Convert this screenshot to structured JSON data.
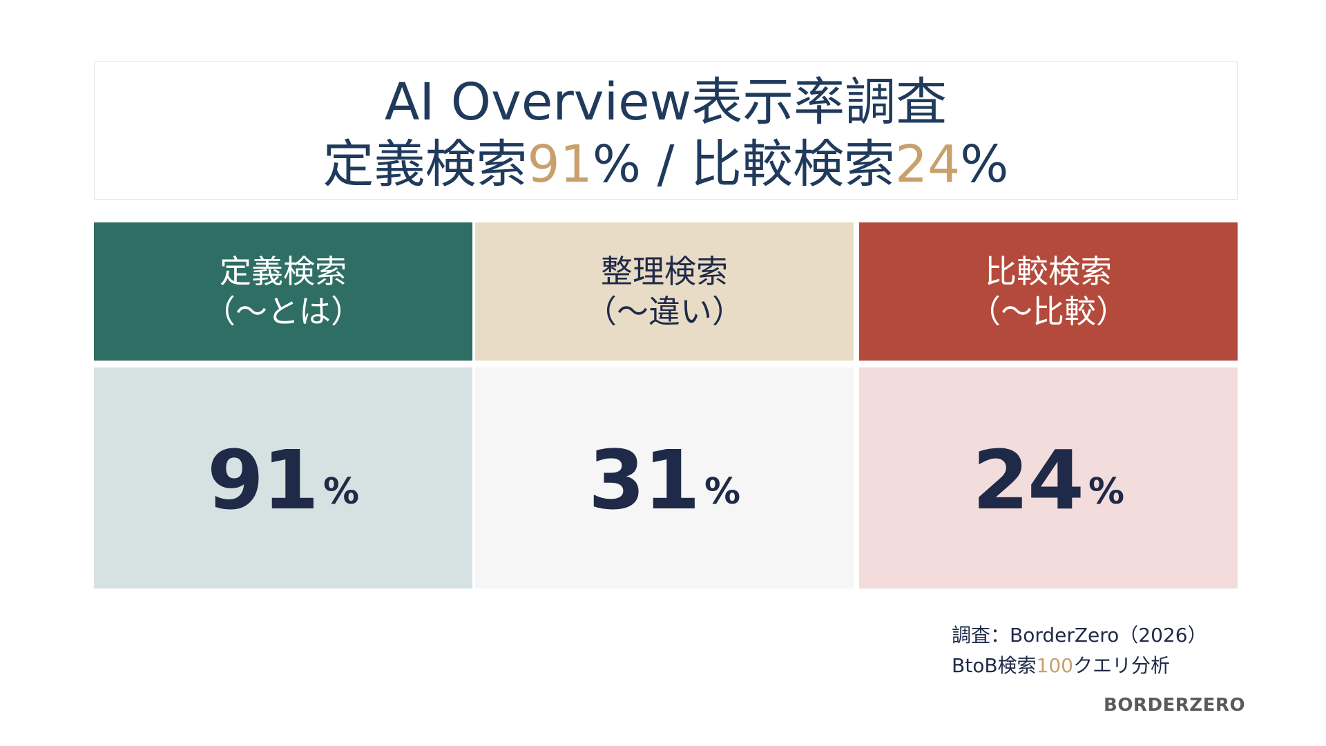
{
  "title": {
    "line1": "AI Overview表示率調査",
    "line2_part1": "定義検索",
    "line2_val1": "91",
    "line2_part2": "% / 比較検索",
    "line2_val2": "24",
    "line2_part3": "%"
  },
  "chart_data": {
    "type": "table",
    "unit": "%",
    "categories": [
      {
        "name": "定義検索",
        "sub": "（〜とは）",
        "value": 91
      },
      {
        "name": "整理検索",
        "sub": "（〜違い）",
        "value": 31
      },
      {
        "name": "比較検索",
        "sub": "（〜比較）",
        "value": 24
      }
    ]
  },
  "colors": {
    "header_bg": [
      "#2e6e64",
      "#e9dcc6",
      "#b44a3b"
    ],
    "header_text": [
      "#ffffff",
      "#1f2a48",
      "#ffffff"
    ],
    "body_bg": [
      "#d6e2e1",
      "#f6f6f6",
      "#f3dcdc"
    ],
    "accent": "#c9a06c"
  },
  "source": {
    "line1": "調査：BorderZero（2026）",
    "line2_part1": "BtoB検索",
    "line2_count": "100",
    "line2_part2": "クエリ分析"
  },
  "logo": "BORDERZERO"
}
